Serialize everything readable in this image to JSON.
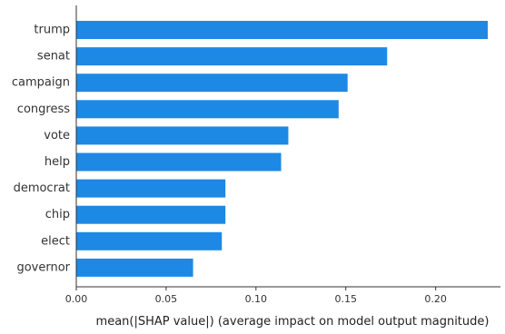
{
  "chart_data": {
    "type": "bar",
    "orientation": "horizontal",
    "categories": [
      "trump",
      "senat",
      "campaign",
      "congress",
      "vote",
      "help",
      "democrat",
      "chip",
      "elect",
      "governor"
    ],
    "values": [
      0.229,
      0.173,
      0.151,
      0.146,
      0.118,
      0.114,
      0.083,
      0.083,
      0.081,
      0.065
    ],
    "xlabel": "mean(|SHAP value|) (average impact on model output magnitude)",
    "ylabel": "",
    "xlim": [
      0,
      0.23
    ],
    "xticks": [
      0.0,
      0.05,
      0.1,
      0.15,
      0.2
    ],
    "xtick_labels": [
      "0.00",
      "0.05",
      "0.10",
      "0.15",
      "0.20"
    ],
    "grid": false,
    "bar_color": "#1e88e5"
  }
}
